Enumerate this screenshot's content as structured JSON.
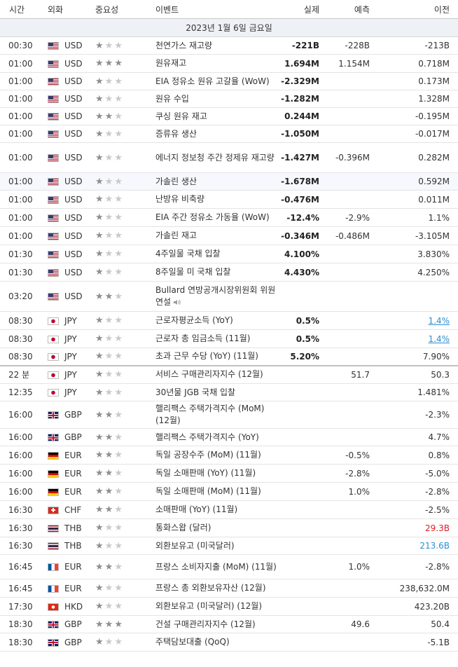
{
  "headers": {
    "time": "시간",
    "currency": "외화",
    "importance": "중요성",
    "event": "이벤트",
    "actual": "실제",
    "forecast": "예측",
    "previous": "이전"
  },
  "date_label": "2023년 1월 6일 금요일",
  "colors": {
    "positive": "#2b8ed1",
    "negative": "#e01b24",
    "date_row_bg": "#eef1f5"
  },
  "rows": [
    {
      "time": "00:30",
      "flag": "us",
      "currency": "USD",
      "stars": 1,
      "event": "천연가스 재고량",
      "actual": "-221B",
      "actual_color": "pos",
      "forecast": "-228B",
      "previous": "-213B"
    },
    {
      "time": "01:00",
      "flag": "us",
      "currency": "USD",
      "stars": 3,
      "event": "원유재고",
      "actual": "1.694M",
      "actual_color": "pos",
      "forecast": "1.154M",
      "previous": "0.718M"
    },
    {
      "time": "01:00",
      "flag": "us",
      "currency": "USD",
      "stars": 1,
      "event": "EIA 정유소 원유 고갈율 (WoW)",
      "actual": "-2.329M",
      "forecast": "",
      "previous": "0.173M"
    },
    {
      "time": "01:00",
      "flag": "us",
      "currency": "USD",
      "stars": 1,
      "event": "원유 수입",
      "actual": "-1.282M",
      "forecast": "",
      "previous": "1.328M"
    },
    {
      "time": "01:00",
      "flag": "us",
      "currency": "USD",
      "stars": 2,
      "event": "쿠싱 원유 재고",
      "actual": "0.244M",
      "forecast": "",
      "previous": "-0.195M"
    },
    {
      "time": "01:00",
      "flag": "us",
      "currency": "USD",
      "stars": 1,
      "event": "증류유 생산",
      "actual": "-1.050M",
      "forecast": "",
      "previous": "-0.017M"
    },
    {
      "time": "01:00",
      "flag": "us",
      "currency": "USD",
      "stars": 1,
      "event": "에너지 정보청 주간 정제유 재고량",
      "actual": "-1.427M",
      "actual_color": "neg",
      "forecast": "-0.396M",
      "previous": "0.282M"
    },
    {
      "time": "01:00",
      "flag": "us",
      "currency": "USD",
      "stars": 1,
      "event": "가솔린 생산",
      "actual": "-1.678M",
      "forecast": "",
      "previous": "0.592M",
      "highlight": true
    },
    {
      "time": "01:00",
      "flag": "us",
      "currency": "USD",
      "stars": 1,
      "event": "난방유 비축량",
      "actual": "-0.476M",
      "forecast": "",
      "previous": "0.011M"
    },
    {
      "time": "01:00",
      "flag": "us",
      "currency": "USD",
      "stars": 1,
      "event": "EIA 주간 정유소 가동율 (WoW)",
      "actual": "-12.4%",
      "actual_color": "pos",
      "forecast": "-2.9%",
      "previous": "1.1%"
    },
    {
      "time": "01:00",
      "flag": "us",
      "currency": "USD",
      "stars": 1,
      "event": "가솔린 재고",
      "actual": "-0.346M",
      "actual_color": "pos",
      "forecast": "-0.486M",
      "previous": "-3.105M"
    },
    {
      "time": "01:30",
      "flag": "us",
      "currency": "USD",
      "stars": 1,
      "event": "4주일물 국채 입찰",
      "actual": "4.100%",
      "forecast": "",
      "previous": "3.830%"
    },
    {
      "time": "01:30",
      "flag": "us",
      "currency": "USD",
      "stars": 1,
      "event": "8주일물 미 국채 입찰",
      "actual": "4.430%",
      "forecast": "",
      "previous": "4.250%"
    },
    {
      "time": "03:20",
      "flag": "us",
      "currency": "USD",
      "stars": 2,
      "event": "Bullard 연방공개시장위원회 위원 연설",
      "speaker": true,
      "actual": "",
      "forecast": "",
      "previous": ""
    },
    {
      "time": "08:30",
      "flag": "jp",
      "currency": "JPY",
      "stars": 1,
      "event": "근로자평균소득 (YoY)",
      "actual": "0.5%",
      "forecast": "",
      "previous": "1.4%",
      "previous_style": "lnk"
    },
    {
      "time": "08:30",
      "flag": "jp",
      "currency": "JPY",
      "stars": 1,
      "event": "근로자 총 임금소득 (11월)",
      "actual": "0.5%",
      "forecast": "",
      "previous": "1.4%",
      "previous_style": "lnk"
    },
    {
      "time": "08:30",
      "flag": "jp",
      "currency": "JPY",
      "stars": 1,
      "event": "초과 근무 수당 (YoY) (11월)",
      "actual": "5.20%",
      "forecast": "",
      "previous": "7.90%",
      "separator": true
    },
    {
      "time": "22 분",
      "flag": "jp",
      "currency": "JPY",
      "stars": 1,
      "event": "서비스 구매관리자지수 (12월)",
      "actual": "",
      "forecast": "51.7",
      "previous": "50.3"
    },
    {
      "time": "12:35",
      "flag": "jp",
      "currency": "JPY",
      "stars": 1,
      "event": "30년물 JGB 국채 입찰",
      "actual": "",
      "forecast": "",
      "previous": "1.481%"
    },
    {
      "time": "16:00",
      "flag": "gb",
      "currency": "GBP",
      "stars": 2,
      "event": "핼리팩스 주택가격지수 (MoM) (12월)",
      "actual": "",
      "forecast": "",
      "previous": "-2.3%"
    },
    {
      "time": "16:00",
      "flag": "gb",
      "currency": "GBP",
      "stars": 2,
      "event": "핼리팩스 주택가격지수 (YoY)",
      "actual": "",
      "forecast": "",
      "previous": "4.7%"
    },
    {
      "time": "16:00",
      "flag": "de",
      "currency": "EUR",
      "stars": 2,
      "event": "독일 공장수주 (MoM) (11월)",
      "actual": "",
      "forecast": "-0.5%",
      "previous": "0.8%"
    },
    {
      "time": "16:00",
      "flag": "de",
      "currency": "EUR",
      "stars": 2,
      "event": "독일 소매판매 (YoY) (11월)",
      "actual": "",
      "forecast": "-2.8%",
      "previous": "-5.0%"
    },
    {
      "time": "16:00",
      "flag": "de",
      "currency": "EUR",
      "stars": 2,
      "event": "독일 소매판매 (MoM) (11월)",
      "actual": "",
      "forecast": "1.0%",
      "previous": "-2.8%"
    },
    {
      "time": "16:30",
      "flag": "ch",
      "currency": "CHF",
      "stars": 2,
      "event": "소매판매 (YoY) (11월)",
      "actual": "",
      "forecast": "",
      "previous": "-2.5%"
    },
    {
      "time": "16:30",
      "flag": "th",
      "currency": "THB",
      "stars": 1,
      "event": "통화스왑 (달러)",
      "actual": "",
      "forecast": "",
      "previous": "29.3B",
      "previous_style": "red"
    },
    {
      "time": "16:30",
      "flag": "th",
      "currency": "THB",
      "stars": 1,
      "event": "외환보유고 (미국달러)",
      "actual": "",
      "forecast": "",
      "previous": "213.6B",
      "previous_style": "pos"
    },
    {
      "time": "16:45",
      "flag": "fr",
      "currency": "EUR",
      "stars": 2,
      "event": "프랑스 소비자지출 (MoM) (11월)",
      "actual": "",
      "forecast": "1.0%",
      "previous": "-2.8%"
    },
    {
      "time": "16:45",
      "flag": "fr",
      "currency": "EUR",
      "stars": 1,
      "event": "프랑스 총 외환보유자산 (12월)",
      "actual": "",
      "forecast": "",
      "previous": "238,632.0M"
    },
    {
      "time": "17:30",
      "flag": "hk",
      "currency": "HKD",
      "stars": 1,
      "event": "외환보유고 (미국달러) (12월)",
      "actual": "",
      "forecast": "",
      "previous": "423.20B"
    },
    {
      "time": "18:30",
      "flag": "gb",
      "currency": "GBP",
      "stars": 3,
      "event": "건설 구매관리자지수 (12월)",
      "actual": "",
      "forecast": "49.6",
      "previous": "50.4"
    },
    {
      "time": "18:30",
      "flag": "gb",
      "currency": "GBP",
      "stars": 1,
      "event": "주택담보대출 (QoQ)",
      "actual": "",
      "forecast": "",
      "previous": "-5.1B"
    }
  ]
}
